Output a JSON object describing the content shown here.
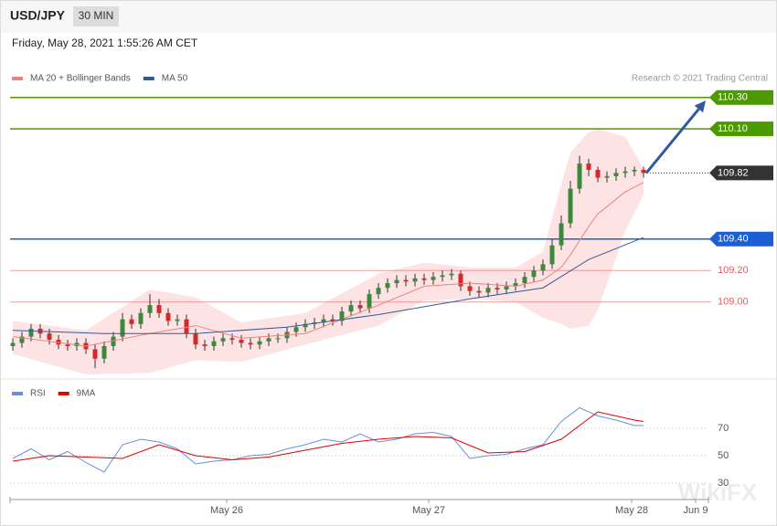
{
  "header": {
    "symbol": "USD/JPY",
    "interval": "30 MIN",
    "timestamp": "Friday, May 28, 2021 1:55:26 AM CET"
  },
  "credit": "Research © 2021 Trading Central",
  "watermark": "WikiFX",
  "chart_data": [
    {
      "type": "candlestick",
      "x": [
        0,
        1,
        2,
        3,
        4,
        5,
        6,
        7,
        8,
        9,
        10,
        11,
        12,
        13,
        14,
        15,
        16,
        17,
        18,
        19,
        20,
        21,
        22,
        23,
        24,
        25,
        26,
        27,
        28,
        29,
        30,
        31,
        32,
        33,
        34,
        35,
        36,
        37,
        38,
        39,
        40,
        41,
        42,
        43,
        44,
        45,
        46,
        47,
        48,
        49,
        50,
        51,
        52,
        53,
        54,
        55,
        56,
        57,
        58,
        59,
        60,
        61,
        62,
        63,
        64,
        65,
        66,
        67,
        68,
        69
      ],
      "open": [
        108.72,
        108.74,
        108.78,
        108.83,
        108.8,
        108.76,
        108.73,
        108.72,
        108.74,
        108.7,
        108.64,
        108.72,
        108.78,
        108.89,
        108.86,
        108.93,
        108.98,
        108.93,
        108.88,
        108.89,
        108.8,
        108.73,
        108.72,
        108.75,
        108.77,
        108.76,
        108.74,
        108.73,
        108.75,
        108.77,
        108.77,
        108.81,
        108.84,
        108.86,
        108.87,
        108.89,
        108.88,
        108.94,
        108.98,
        108.96,
        109.05,
        109.09,
        109.12,
        109.14,
        109.13,
        109.15,
        109.14,
        109.16,
        109.17,
        109.18,
        109.1,
        109.07,
        109.06,
        109.09,
        109.08,
        109.1,
        109.12,
        109.16,
        109.2,
        109.24,
        109.36,
        109.5,
        109.72,
        109.88,
        109.84,
        109.79,
        109.8,
        109.82,
        109.83,
        109.84
      ],
      "high": [
        108.77,
        108.81,
        108.86,
        108.86,
        108.83,
        108.79,
        108.76,
        108.77,
        108.77,
        108.73,
        108.75,
        108.81,
        108.93,
        108.92,
        108.96,
        109.05,
        109.02,
        108.96,
        108.92,
        108.92,
        108.83,
        108.76,
        108.78,
        108.8,
        108.8,
        108.79,
        108.77,
        108.78,
        108.8,
        108.8,
        108.84,
        108.87,
        108.89,
        108.9,
        108.92,
        108.92,
        108.97,
        109.01,
        109.01,
        109.08,
        109.12,
        109.15,
        109.17,
        109.17,
        109.18,
        109.18,
        109.19,
        109.2,
        109.21,
        109.2,
        109.13,
        109.1,
        109.12,
        109.12,
        109.13,
        109.15,
        109.19,
        109.23,
        109.27,
        109.4,
        109.55,
        109.77,
        109.93,
        109.91,
        109.86,
        109.83,
        109.85,
        109.86,
        109.86,
        109.86
      ],
      "low": [
        108.69,
        108.71,
        108.75,
        108.77,
        108.73,
        108.7,
        108.69,
        108.69,
        108.67,
        108.58,
        108.61,
        108.69,
        108.75,
        108.83,
        108.83,
        108.9,
        108.9,
        108.85,
        108.85,
        108.77,
        108.7,
        108.69,
        108.69,
        108.72,
        108.73,
        108.71,
        108.7,
        108.7,
        108.72,
        108.74,
        108.74,
        108.78,
        108.81,
        108.83,
        108.84,
        108.85,
        108.85,
        108.91,
        108.93,
        108.93,
        109.02,
        109.06,
        109.09,
        109.1,
        109.1,
        109.11,
        109.11,
        109.13,
        109.14,
        109.07,
        109.04,
        109.03,
        109.03,
        109.05,
        109.05,
        109.07,
        109.09,
        109.13,
        109.17,
        109.21,
        109.33,
        109.47,
        109.69,
        109.8,
        109.76,
        109.76,
        109.77,
        109.79,
        109.8,
        109.79
      ],
      "close": [
        108.74,
        108.78,
        108.83,
        108.8,
        108.76,
        108.73,
        108.72,
        108.74,
        108.7,
        108.64,
        108.72,
        108.78,
        108.89,
        108.86,
        108.93,
        108.98,
        108.93,
        108.88,
        108.89,
        108.8,
        108.73,
        108.72,
        108.75,
        108.77,
        108.76,
        108.74,
        108.73,
        108.75,
        108.77,
        108.77,
        108.81,
        108.84,
        108.86,
        108.87,
        108.89,
        108.88,
        108.94,
        108.98,
        108.96,
        109.05,
        109.09,
        109.12,
        109.14,
        109.13,
        109.15,
        109.14,
        109.16,
        109.17,
        109.18,
        109.1,
        109.07,
        109.06,
        109.09,
        109.08,
        109.1,
        109.12,
        109.16,
        109.2,
        109.24,
        109.36,
        109.5,
        109.72,
        109.88,
        109.84,
        109.79,
        109.8,
        109.82,
        109.83,
        109.84,
        109.82
      ],
      "up_color": "#3b8a3b",
      "down_color": "#d62828",
      "xlim": [
        -0.3,
        76.1
      ],
      "ylim": [
        108.54,
        110.455
      ],
      "overlays": [
        {
          "name": "MA 20 + Bollinger Bands",
          "color": "#f08080",
          "band_color": "#fde3e3",
          "x": [
            0,
            8,
            15,
            20,
            25,
            32,
            40,
            45,
            50,
            55,
            58,
            60,
            61,
            63,
            64,
            67,
            69
          ],
          "values": [
            108.78,
            108.72,
            108.8,
            108.85,
            108.77,
            108.8,
            108.98,
            109.1,
            109.12,
            109.1,
            109.14,
            109.22,
            109.3,
            109.48,
            109.56,
            109.7,
            109.76
          ],
          "upper": [
            108.88,
            108.82,
            109.08,
            109.03,
            108.87,
            108.93,
            109.18,
            109.25,
            109.22,
            109.22,
            109.32,
            109.75,
            109.95,
            110.08,
            110.1,
            110.05,
            109.85
          ],
          "lower": [
            108.67,
            108.54,
            108.55,
            108.63,
            108.62,
            108.73,
            108.85,
            109.01,
            109.02,
            109.0,
            108.9,
            108.86,
            108.83,
            108.85,
            108.95,
            109.45,
            109.68
          ]
        },
        {
          "name": "MA 50",
          "color": "#2f5b9c",
          "x": [
            0,
            10,
            20,
            30,
            40,
            50,
            58,
            63,
            69
          ],
          "values": [
            108.82,
            108.8,
            108.8,
            108.84,
            108.92,
            109.02,
            109.09,
            109.27,
            109.41
          ]
        }
      ],
      "levels": [
        {
          "value": 110.3,
          "label": "110.30",
          "color": "#4c9a00",
          "boxed": true,
          "line": "solid"
        },
        {
          "value": 110.1,
          "label": "110.10",
          "color": "#4c9a00",
          "boxed": true,
          "line": "solid"
        },
        {
          "value": 109.82,
          "label": "109.82",
          "color": "#333333",
          "boxed": true,
          "line": "dotted"
        },
        {
          "value": 109.4,
          "label": "109.40",
          "color": "#1a5fd6",
          "boxed": true,
          "line": "solid"
        },
        {
          "value": 109.2,
          "label": "109.20",
          "color": "#e06060",
          "boxed": false,
          "line": "solid"
        },
        {
          "value": 109,
          "label": "109.00",
          "color": "#e06060",
          "boxed": false,
          "line": "solid"
        }
      ],
      "projection": {
        "color": "#2f5b9c",
        "x": [
          69.3,
          75.8
        ],
        "values": [
          109.82,
          110.28
        ]
      }
    },
    {
      "type": "line",
      "xlim": [
        -0.3,
        76.1
      ],
      "ylim": [
        19,
        90
      ],
      "yticks": [
        70,
        50,
        30
      ],
      "xticks": [
        {
          "value": 23.4,
          "label": "May 26"
        },
        {
          "value": 45.5,
          "label": "May 27"
        },
        {
          "value": 67.7,
          "label": "May 28"
        },
        {
          "value": 74.7,
          "label": "Jun 9"
        }
      ],
      "series": [
        {
          "name": "RSI",
          "color": "#6a8fe0",
          "x": [
            0,
            2,
            4,
            6,
            8,
            10,
            12,
            14,
            16,
            18,
            20,
            22,
            24,
            26,
            28,
            30,
            32,
            34,
            36,
            38,
            40,
            42,
            44,
            46,
            48,
            50,
            52,
            54,
            56,
            58,
            60,
            62,
            64,
            66,
            68,
            69
          ],
          "values": [
            48,
            55,
            47,
            53,
            45,
            38,
            58,
            62,
            60,
            55,
            44,
            46,
            47,
            50,
            51,
            55,
            58,
            62,
            60,
            66,
            60,
            62,
            66,
            67,
            64,
            48,
            50,
            51,
            55,
            58,
            75,
            85,
            79,
            76,
            72,
            72
          ]
        },
        {
          "name": "9MA",
          "color": "#e00000",
          "x": [
            0,
            4,
            8,
            12,
            16,
            20,
            24,
            28,
            32,
            36,
            40,
            44,
            48,
            52,
            56,
            60,
            64,
            68,
            69
          ],
          "values": [
            46,
            50,
            49,
            48,
            58,
            50,
            47,
            49,
            54,
            59,
            62,
            64,
            63,
            52,
            53,
            62,
            82,
            76,
            75
          ]
        }
      ]
    }
  ]
}
